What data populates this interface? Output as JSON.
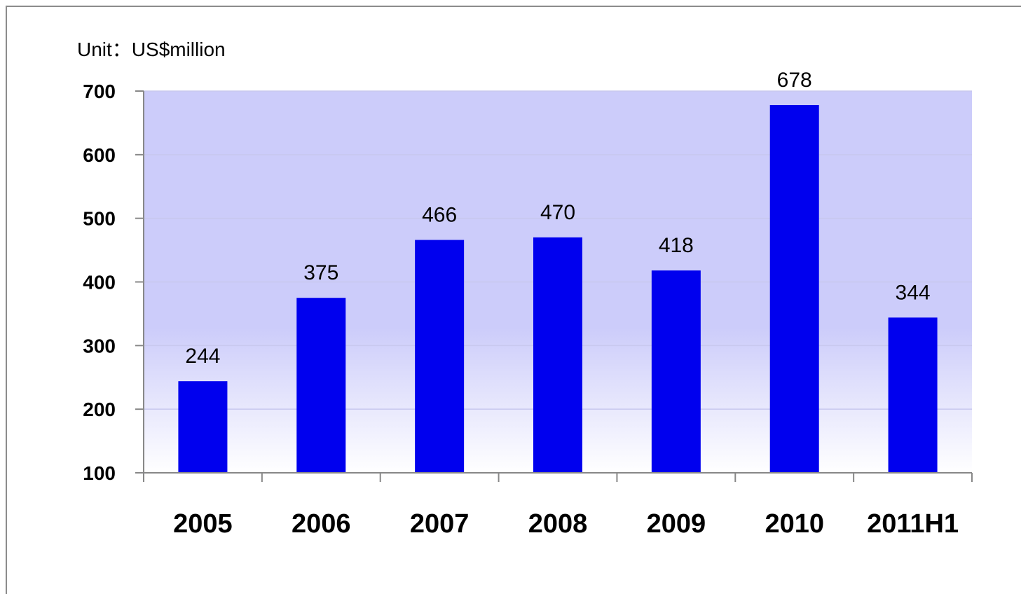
{
  "chart_data": {
    "type": "bar",
    "unit_label": "Unit：US$million",
    "categories": [
      "2005",
      "2006",
      "2007",
      "2008",
      "2009",
      "2010",
      "2011H1"
    ],
    "values": [
      244,
      375,
      466,
      470,
      418,
      678,
      344
    ],
    "data_labels": [
      "244",
      "375",
      "466",
      "470",
      "418",
      "678",
      "344"
    ],
    "ylim": [
      100,
      700
    ],
    "yticks": [
      100,
      200,
      300,
      400,
      500,
      600,
      700
    ],
    "ytick_labels": [
      "100",
      "200",
      "300",
      "400",
      "500",
      "600",
      "700"
    ],
    "grid": true,
    "legend": "none",
    "colors": {
      "bar": "#0000ee",
      "plot_bg_top": "#ccccfa",
      "plot_bg_bottom": "#ffffff",
      "axis": "#888888",
      "gridline": "#c8c8ee"
    }
  }
}
